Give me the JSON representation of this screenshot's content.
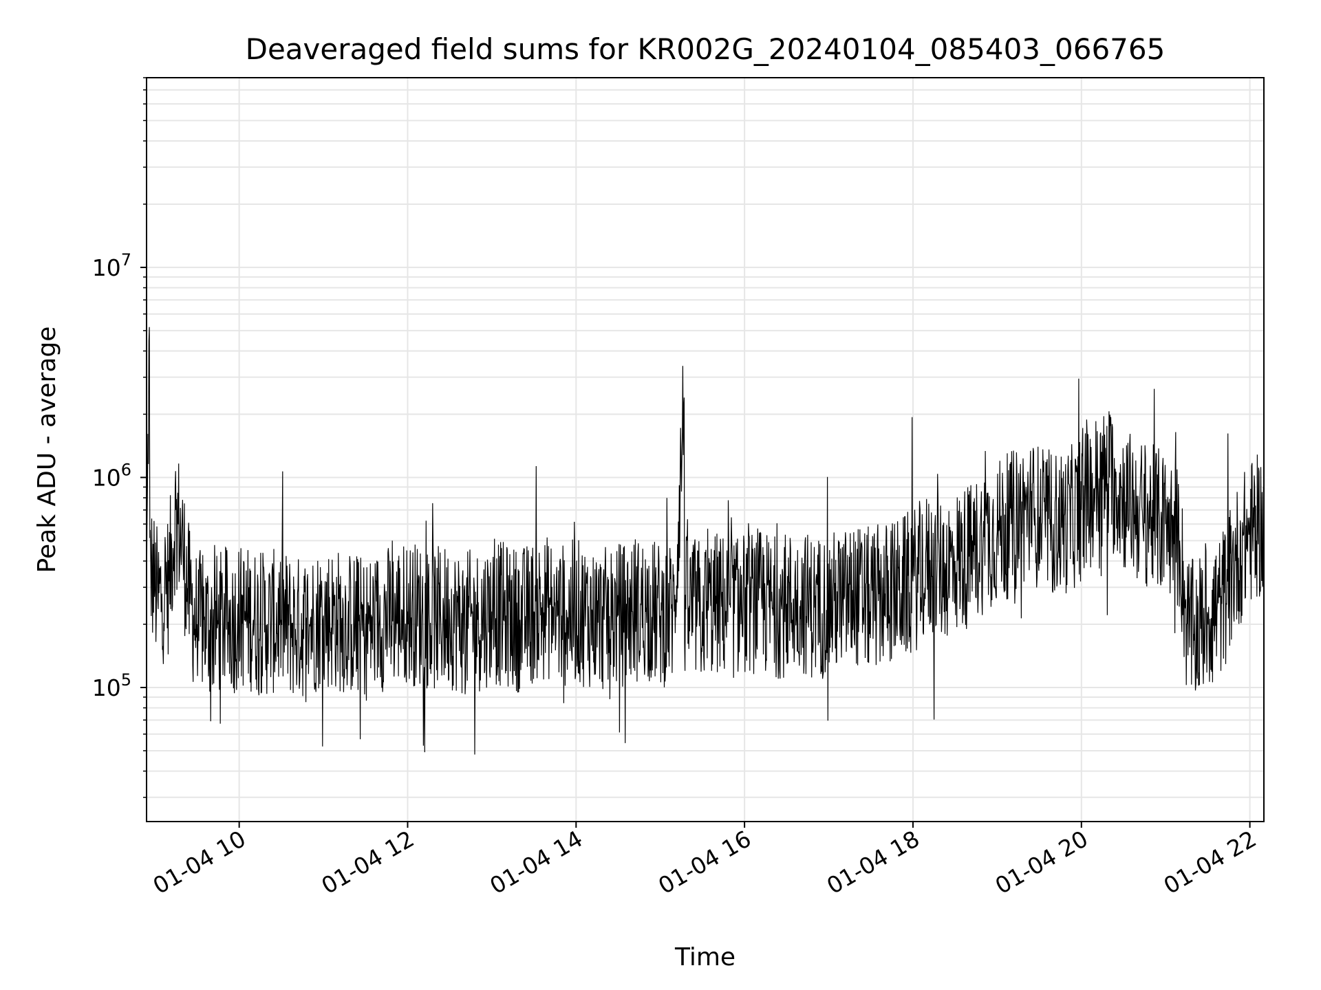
{
  "chart_data": {
    "type": "line",
    "title": "Deaveraged field sums for KR002G_20240104_085403_066765",
    "xlabel": "Time",
    "ylabel": "Peak ADU - average",
    "x_axis": {
      "type": "time",
      "date": "2024-01-04",
      "range": [
        "08:54",
        "22:10"
      ]
    },
    "y_axis": {
      "scale": "log",
      "range": [
        23000,
        80000000
      ]
    },
    "grid": {
      "major": true,
      "minor": true
    },
    "legend": "none",
    "line_color": "#000000",
    "x_ticks": [
      {
        "value": "2024-01-04 10:00",
        "label": "01-04 10"
      },
      {
        "value": "2024-01-04 12:00",
        "label": "01-04 12"
      },
      {
        "value": "2024-01-04 14:00",
        "label": "01-04 14"
      },
      {
        "value": "2024-01-04 16:00",
        "label": "01-04 16"
      },
      {
        "value": "2024-01-04 18:00",
        "label": "01-04 18"
      },
      {
        "value": "2024-01-04 20:00",
        "label": "01-04 20"
      },
      {
        "value": "2024-01-04 22:00",
        "label": "01-04 22"
      }
    ],
    "y_ticks": [
      {
        "value": 100000,
        "base": "10",
        "exp": "5"
      },
      {
        "value": 1000000,
        "base": "10",
        "exp": "6"
      },
      {
        "value": 10000000,
        "base": "10",
        "exp": "7"
      }
    ],
    "series": [
      {
        "x": [
          "08:54",
          "08:56",
          "08:58",
          "09:00",
          "09:02",
          "09:05",
          "09:10",
          "09:15",
          "09:20",
          "09:25",
          "09:30",
          "09:35",
          "09:40",
          "09:45",
          "09:50",
          "09:55",
          "10:00",
          "10:10",
          "10:20",
          "10:30",
          "10:40",
          "10:50",
          "11:00",
          "11:10",
          "11:20",
          "11:30",
          "11:40",
          "11:50",
          "12:00",
          "12:10",
          "12:20",
          "12:30",
          "12:40",
          "12:50",
          "13:00",
          "13:10",
          "13:20",
          "13:30",
          "13:40",
          "13:50",
          "14:00",
          "14:10",
          "14:20",
          "14:30",
          "14:40",
          "14:50",
          "15:00",
          "15:10",
          "15:17",
          "15:20",
          "15:30",
          "15:40",
          "15:50",
          "16:00",
          "16:10",
          "16:20",
          "16:30",
          "16:40",
          "16:50",
          "17:00",
          "17:10",
          "17:20",
          "17:30",
          "17:40",
          "17:50",
          "18:00",
          "18:10",
          "18:20",
          "18:30",
          "18:40",
          "18:50",
          "19:00",
          "19:10",
          "19:20",
          "19:30",
          "19:40",
          "19:50",
          "20:00",
          "20:10",
          "20:20",
          "20:30",
          "20:40",
          "20:50",
          "21:00",
          "21:10",
          "21:15",
          "21:20",
          "21:30",
          "21:40",
          "21:50",
          "22:00",
          "22:10"
        ],
        "y": [
          280000,
          5200000,
          350000,
          300000,
          260000,
          280000,
          320000,
          700000,
          450000,
          250000,
          200000,
          210000,
          190000,
          200000,
          210000,
          200000,
          220000,
          210000,
          200000,
          210000,
          190000,
          200000,
          220000,
          210000,
          200000,
          190000,
          210000,
          220000,
          230000,
          220000,
          210000,
          220000,
          200000,
          210000,
          230000,
          220000,
          210000,
          230000,
          240000,
          220000,
          230000,
          220000,
          210000,
          220000,
          230000,
          240000,
          220000,
          230000,
          2400000,
          240000,
          230000,
          250000,
          240000,
          250000,
          260000,
          240000,
          250000,
          260000,
          240000,
          250000,
          260000,
          270000,
          260000,
          280000,
          290000,
          320000,
          380000,
          360000,
          400000,
          420000,
          500000,
          550000,
          600000,
          700000,
          650000,
          600000,
          620000,
          700000,
          900000,
          1000000,
          800000,
          700000,
          650000,
          600000,
          500000,
          200000,
          180000,
          220000,
          250000,
          400000,
          550000,
          600000
        ]
      }
    ]
  }
}
